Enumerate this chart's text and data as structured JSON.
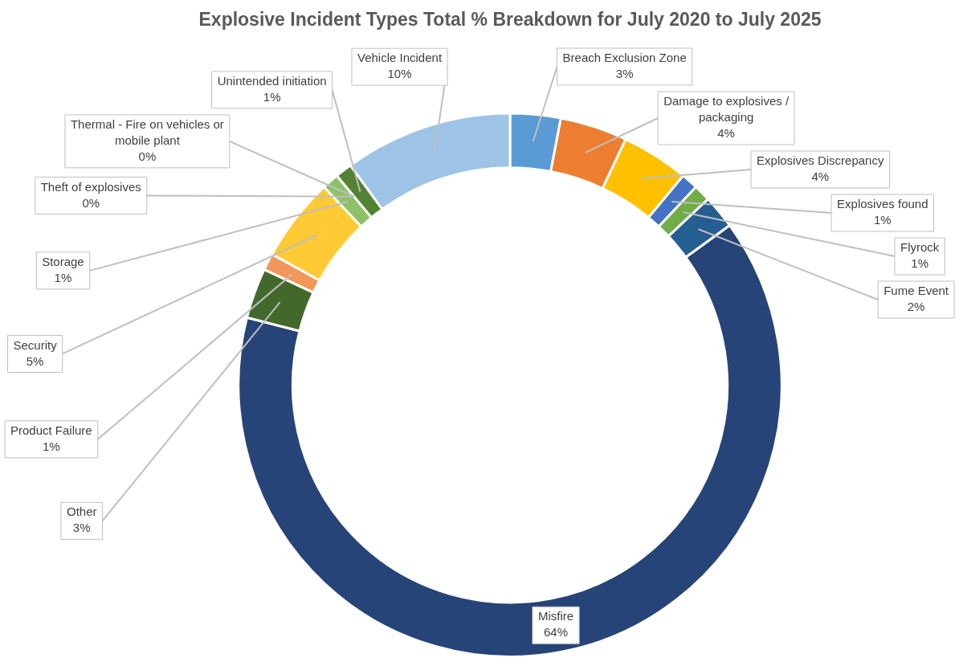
{
  "chart_data": {
    "type": "donut",
    "title": "Explosive Incident Types Total % Breakdown for July 2020 to July 2025",
    "categories": [
      "Breach Exclusion Zone",
      "Damage to explosives / packaging",
      "Explosives Discrepancy",
      "Explosives found",
      "Flyrock",
      "Fume Event",
      "Misfire",
      "Other",
      "Product Failure",
      "Security",
      "Storage",
      "Theft of explosives",
      "Thermal - Fire on vehicles or mobile plant",
      "Unintended initiation",
      "Vehicle Incident"
    ],
    "values": [
      3,
      4,
      4,
      1,
      1,
      2,
      64,
      3,
      1,
      5,
      1,
      0,
      0,
      1,
      10
    ],
    "value_labels": [
      "3%",
      "4%",
      "4%",
      "1%",
      "1%",
      "2%",
      "64%",
      "3%",
      "1%",
      "5%",
      "1%",
      "0%",
      "0%",
      "1%",
      "10%"
    ],
    "colors": [
      "#5b9bd5",
      "#ed7d31",
      "#ffc000",
      "#4472c4",
      "#70ad47",
      "#255e91",
      "#264478",
      "#43682b",
      "#f1975a",
      "#ffca33",
      "#8cc168",
      "#698ed0",
      "#d26012",
      "#548235",
      "#9dc3e6"
    ],
    "legend": false
  }
}
